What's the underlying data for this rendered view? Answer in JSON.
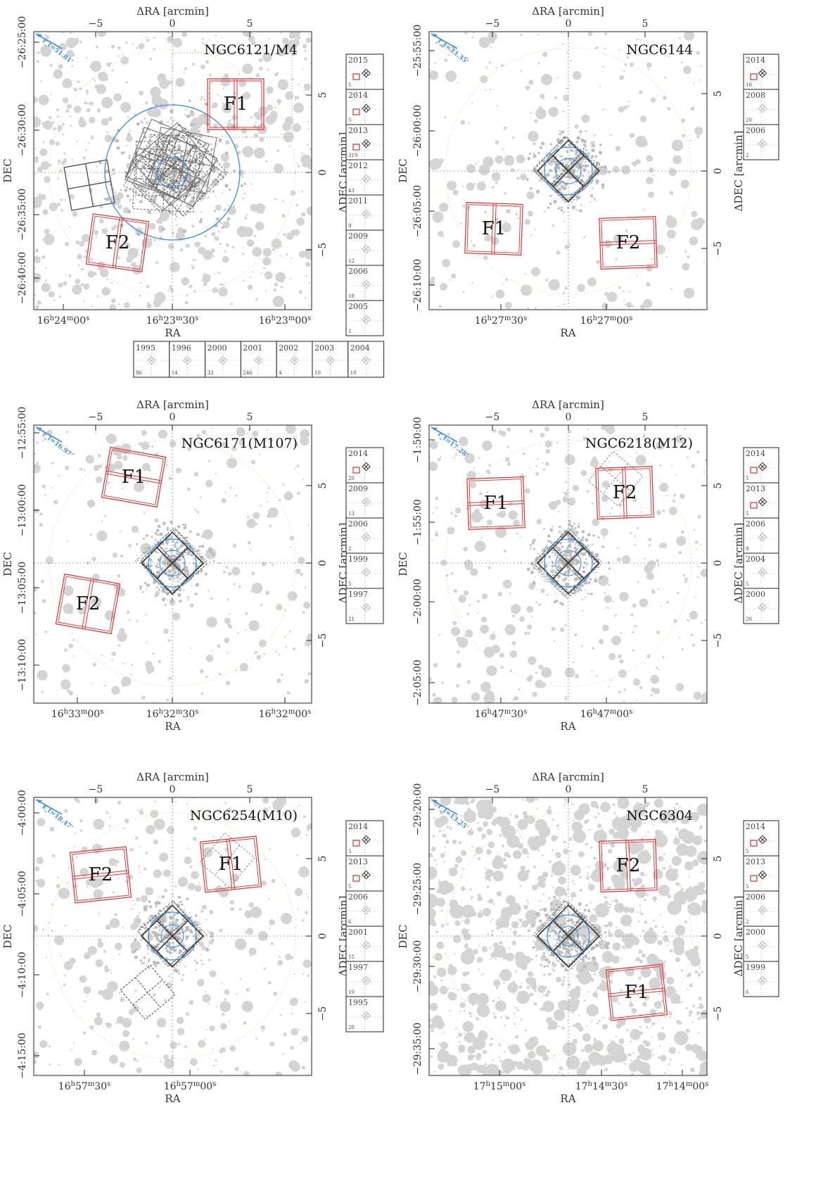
{
  "common": {
    "ra_axis_title": "ΔRA [arcmin]",
    "dec_axis_title": "ΔDEC [arcmin]",
    "x_label": "RA",
    "y_label": "DEC",
    "delta_ticks": [
      "−5",
      "0",
      "5"
    ],
    "field_labels": [
      "F1",
      "F2"
    ],
    "colors": {
      "field": "#e03030",
      "radius": "#3a8fe0",
      "stars": "#d4d4d4",
      "pointings": "#555555"
    }
  },
  "panels": [
    {
      "name": "NGC6121/M4",
      "radius_label": "r_t=51.81'",
      "ra_ticks": [
        "16h24m00s",
        "16h23m30s",
        "16h23m00s"
      ],
      "dec_ticks": [
        "−26:25:00",
        "−26:30:00",
        "−26:35:00",
        "−26:40:00"
      ],
      "epochs": [
        {
          "year": "2015",
          "count": "5"
        },
        {
          "year": "2014",
          "count": "5"
        },
        {
          "year": "2013",
          "count": "319"
        },
        {
          "year": "2012",
          "count": "43"
        },
        {
          "year": "2011",
          "count": "9"
        },
        {
          "year": "2009",
          "count": "12"
        },
        {
          "year": "2006",
          "count": "18"
        },
        {
          "year": "2005",
          "count": "1"
        }
      ],
      "epochs_row": [
        {
          "year": "1995",
          "count": "86"
        },
        {
          "year": "1996",
          "count": "14"
        },
        {
          "year": "2000",
          "count": "33"
        },
        {
          "year": "2001",
          "count": "246"
        },
        {
          "year": "2002",
          "count": "4"
        },
        {
          "year": "2003",
          "count": "10"
        },
        {
          "year": "2004",
          "count": "10"
        }
      ]
    },
    {
      "name": "NGC6144",
      "radius_label": "r_t=33.35'",
      "ra_ticks": [
        "16h27m30s",
        "16h27m00s"
      ],
      "dec_ticks": [
        "−25:55:00",
        "−26:00:00",
        "−26:05:00",
        "−26:10:00"
      ],
      "epochs": [
        {
          "year": "2014",
          "count": "10"
        },
        {
          "year": "2008",
          "count": "20"
        },
        {
          "year": "2006",
          "count": "2"
        }
      ]
    },
    {
      "name": "NGC6171(M107)",
      "radius_label": "r_t=16.97'",
      "ra_ticks": [
        "16h33m00s",
        "16h32m30s",
        "16h32m00s"
      ],
      "dec_ticks": [
        "−12:55:00",
        "−13:00:00",
        "−13:05:00",
        "−13:10:00"
      ],
      "epochs": [
        {
          "year": "2014",
          "count": "20"
        },
        {
          "year": "2009",
          "count": "13"
        },
        {
          "year": "2006",
          "count": "2"
        },
        {
          "year": "1999",
          "count": "5"
        },
        {
          "year": "1997",
          "count": "21"
        }
      ]
    },
    {
      "name": "NGC6218(M12)",
      "radius_label": "r_t=17.28'",
      "ra_ticks": [
        "16h47m30s",
        "16h47m00s"
      ],
      "dec_ticks": [
        "−1:50:00",
        "−1:55:00",
        "−2:00:00",
        "−2:05:00"
      ],
      "epochs": [
        {
          "year": "2014",
          "count": "5"
        },
        {
          "year": "2013",
          "count": "5"
        },
        {
          "year": "2006",
          "count": "9"
        },
        {
          "year": "2004",
          "count": "5"
        },
        {
          "year": "2000",
          "count": "20"
        }
      ]
    },
    {
      "name": "NGC6254(M10)",
      "radius_label": "r_t=18.47'",
      "ra_ticks": [
        "16h57m30s",
        "16h57m00s"
      ],
      "dec_ticks": [
        "−4:00:00",
        "−4:05:00",
        "−4:10:00",
        "−4:15:00"
      ],
      "epochs": [
        {
          "year": "2014",
          "count": "5"
        },
        {
          "year": "2013",
          "count": "5"
        },
        {
          "year": "2006",
          "count": "6"
        },
        {
          "year": "2001",
          "count": "15"
        },
        {
          "year": "1997",
          "count": "10"
        },
        {
          "year": "1995",
          "count": "20"
        }
      ]
    },
    {
      "name": "NGC6304",
      "radius_label": "r_t=13.25'",
      "ra_ticks": [
        "17h15m00s",
        "17h14m30s",
        "17h14m00s"
      ],
      "dec_ticks": [
        "−29:20:00",
        "−29:25:00",
        "−29:30:00",
        "−29:35:00"
      ],
      "epochs": [
        {
          "year": "2014",
          "count": "5"
        },
        {
          "year": "2013",
          "count": "5"
        },
        {
          "year": "2006",
          "count": "2"
        },
        {
          "year": "2000",
          "count": "5"
        },
        {
          "year": "1999",
          "count": "6"
        }
      ]
    }
  ]
}
